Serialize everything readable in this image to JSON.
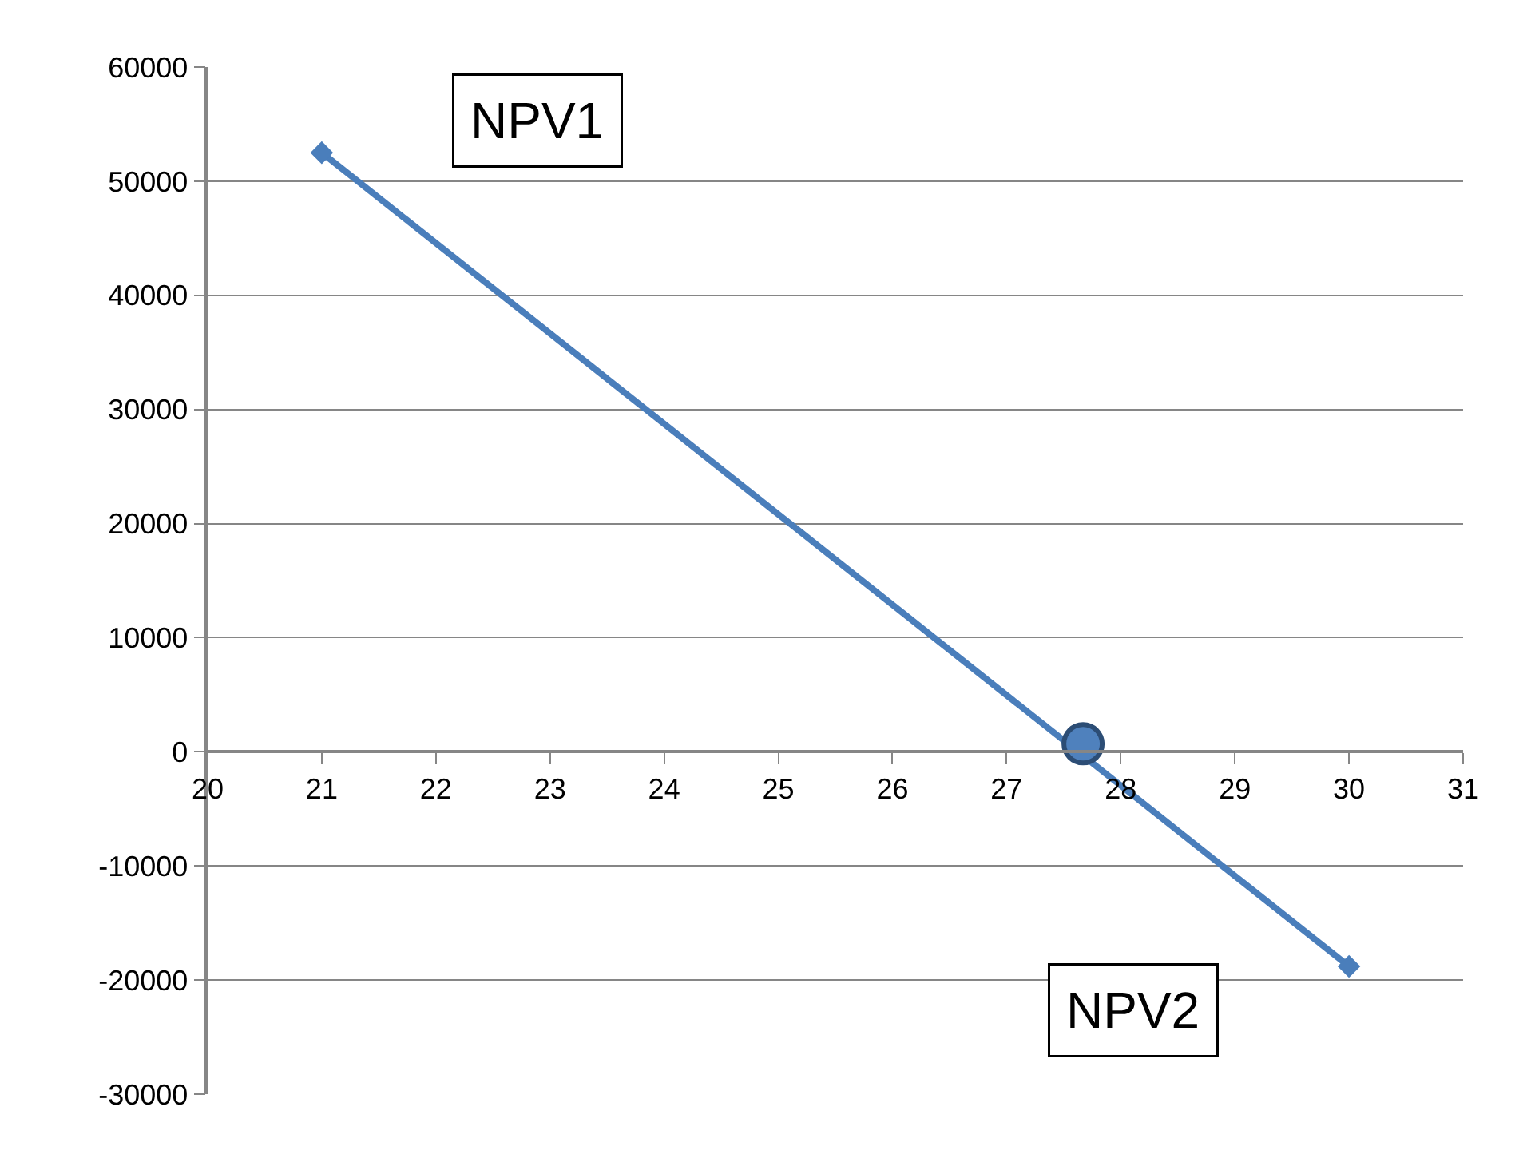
{
  "chart_data": {
    "type": "line",
    "x": [
      21,
      30
    ],
    "series": [
      {
        "color": "#4a7ebb",
        "values": [
          52500,
          -18800
        ],
        "marker": "diamond"
      },
      {
        "type": "scatter",
        "color": "#4f81bd",
        "x": [
          27.67
        ],
        "values": [
          700
        ],
        "marker": "circle"
      }
    ],
    "xlim": [
      20,
      31
    ],
    "xticks": [
      20,
      21,
      22,
      23,
      24,
      25,
      26,
      27,
      28,
      29,
      30,
      31
    ],
    "ylim": [
      -30000,
      60000
    ],
    "yticks": [
      -30000,
      -20000,
      -10000,
      0,
      10000,
      20000,
      30000,
      40000,
      50000,
      60000
    ],
    "grid": "y",
    "legend": false,
    "line_style": "solid",
    "annotations": [
      {
        "text": "NPV1",
        "x": 21,
        "y": 52500
      },
      {
        "text": "NPV2",
        "x": 30,
        "y": -18800
      }
    ]
  }
}
